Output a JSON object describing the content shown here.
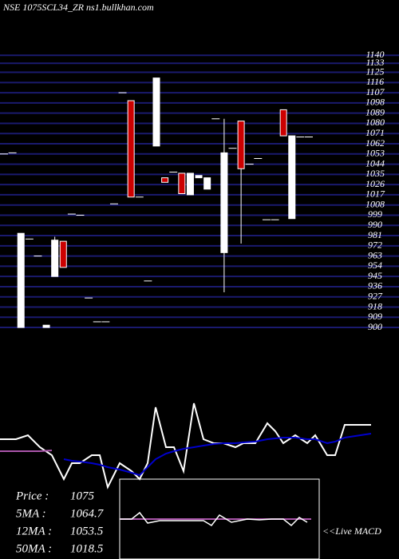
{
  "chart_data": {
    "type": "candlestick",
    "title": "NSE 1075SCL34_ZR ns1.bullkhan.com",
    "open": [
      1053,
      1054,
      900,
      978,
      963,
      900,
      945,
      976,
      1000,
      999,
      926,
      905,
      905,
      1009,
      1107,
      1100,
      1015,
      941,
      1060,
      1032,
      1037,
      1036,
      1017,
      1032,
      1022,
      1084,
      966,
      1058,
      1082,
      1044,
      1049,
      995,
      995,
      1092,
      996,
      1068,
      1068
    ],
    "high": [
      1053,
      1054,
      983,
      978,
      963,
      902,
      980,
      976,
      1000,
      999,
      926,
      905,
      905,
      1009,
      1107,
      1100,
      1015,
      941,
      1120,
      1032,
      1037,
      1036,
      1036,
      1034,
      1032,
      1084,
      1084,
      1058,
      1082,
      1044,
      1049,
      995,
      995,
      1092,
      1069,
      1068,
      1068
    ],
    "low": [
      1053,
      1054,
      900,
      978,
      963,
      900,
      945,
      953,
      1000,
      999,
      926,
      905,
      905,
      1009,
      1107,
      1015,
      1015,
      941,
      1060,
      1028,
      1037,
      1018,
      1017,
      1032,
      1022,
      1084,
      931,
      1058,
      974,
      1044,
      1049,
      995,
      995,
      1069,
      996,
      1068,
      1068
    ],
    "close": [
      1053,
      1054,
      983,
      978,
      963,
      902,
      977,
      953,
      1000,
      999,
      926,
      905,
      905,
      1009,
      1107,
      1015,
      1015,
      941,
      1120,
      1028,
      1037,
      1018,
      1036,
      1034,
      1032,
      1084,
      1054,
      1058,
      1040,
      1044,
      1049,
      995,
      995,
      1069,
      1069,
      1068,
      1068
    ],
    "up_color": "#ffffff",
    "down_color": "#cc0000",
    "grid_color": "#1a1a6e",
    "ylim": [
      893,
      1143
    ],
    "yticks": [
      1140,
      1133,
      1125,
      1116,
      1107,
      1098,
      1089,
      1080,
      1071,
      1062,
      1053,
      1044,
      1035,
      1026,
      1017,
      1008,
      999,
      990,
      981,
      972,
      963,
      954,
      945,
      936,
      927,
      918,
      909,
      900
    ],
    "indicator": {
      "xlim": [
        0,
        500
      ],
      "ylim": [
        0,
        100
      ],
      "x": [
        0,
        20,
        35,
        50,
        65,
        80,
        90,
        100,
        115,
        125,
        135,
        150,
        165,
        175,
        185,
        195,
        208,
        218,
        230,
        243,
        255,
        268,
        280,
        295,
        305,
        320,
        335,
        345,
        355,
        370,
        385,
        395,
        410,
        420,
        432,
        465
      ],
      "series": [
        {
          "color": "#ffffff",
          "values": [
            50,
            50,
            55,
            40,
            30,
            0,
            20,
            20,
            30,
            30,
            -10,
            20,
            10,
            0,
            20,
            90,
            40,
            40,
            10,
            95,
            50,
            45,
            45,
            40,
            45,
            45,
            70,
            60,
            45,
            55,
            45,
            55,
            30,
            30,
            68,
            68
          ]
        },
        {
          "color": "#0000cc",
          "values": [
            null,
            null,
            null,
            null,
            null,
            25,
            23,
            22,
            20,
            18,
            15,
            12,
            8,
            5,
            15,
            25,
            32,
            35,
            38,
            40,
            42,
            44,
            45,
            45,
            46,
            47,
            50,
            51,
            52,
            52,
            50,
            50,
            45,
            47,
            52,
            57
          ]
        },
        {
          "color": "#aa55aa",
          "values": [
            35,
            35,
            35,
            35,
            36,
            null,
            null,
            null,
            null,
            null,
            null,
            null,
            null,
            null,
            null,
            null,
            null,
            null,
            null,
            null,
            null,
            null,
            null,
            null,
            null,
            null,
            null,
            null,
            null,
            null,
            null,
            null,
            null,
            null,
            null,
            null
          ]
        }
      ]
    },
    "macd": {
      "xlim": [
        0,
        250
      ],
      "ylim": [
        0,
        100
      ],
      "x": [
        0,
        15,
        25,
        35,
        50,
        70,
        90,
        105,
        115,
        125,
        140,
        160,
        175,
        190,
        205,
        215,
        225,
        235
      ],
      "values": [
        50,
        50,
        58,
        45,
        48,
        48,
        48,
        48,
        42,
        55,
        46,
        50,
        49,
        50,
        50,
        42,
        52,
        46
      ],
      "signal_color": "#aa55aa",
      "line_color": "#ffffff",
      "label": "<<Live MACD"
    },
    "stats": [
      {
        "label": "Price :",
        "value": 1075
      },
      {
        "label": "5MA :",
        "value": 1064.7
      },
      {
        "label": "12MA :",
        "value": 1053.5
      },
      {
        "label": "50MA :",
        "value": 1018.5
      }
    ]
  }
}
